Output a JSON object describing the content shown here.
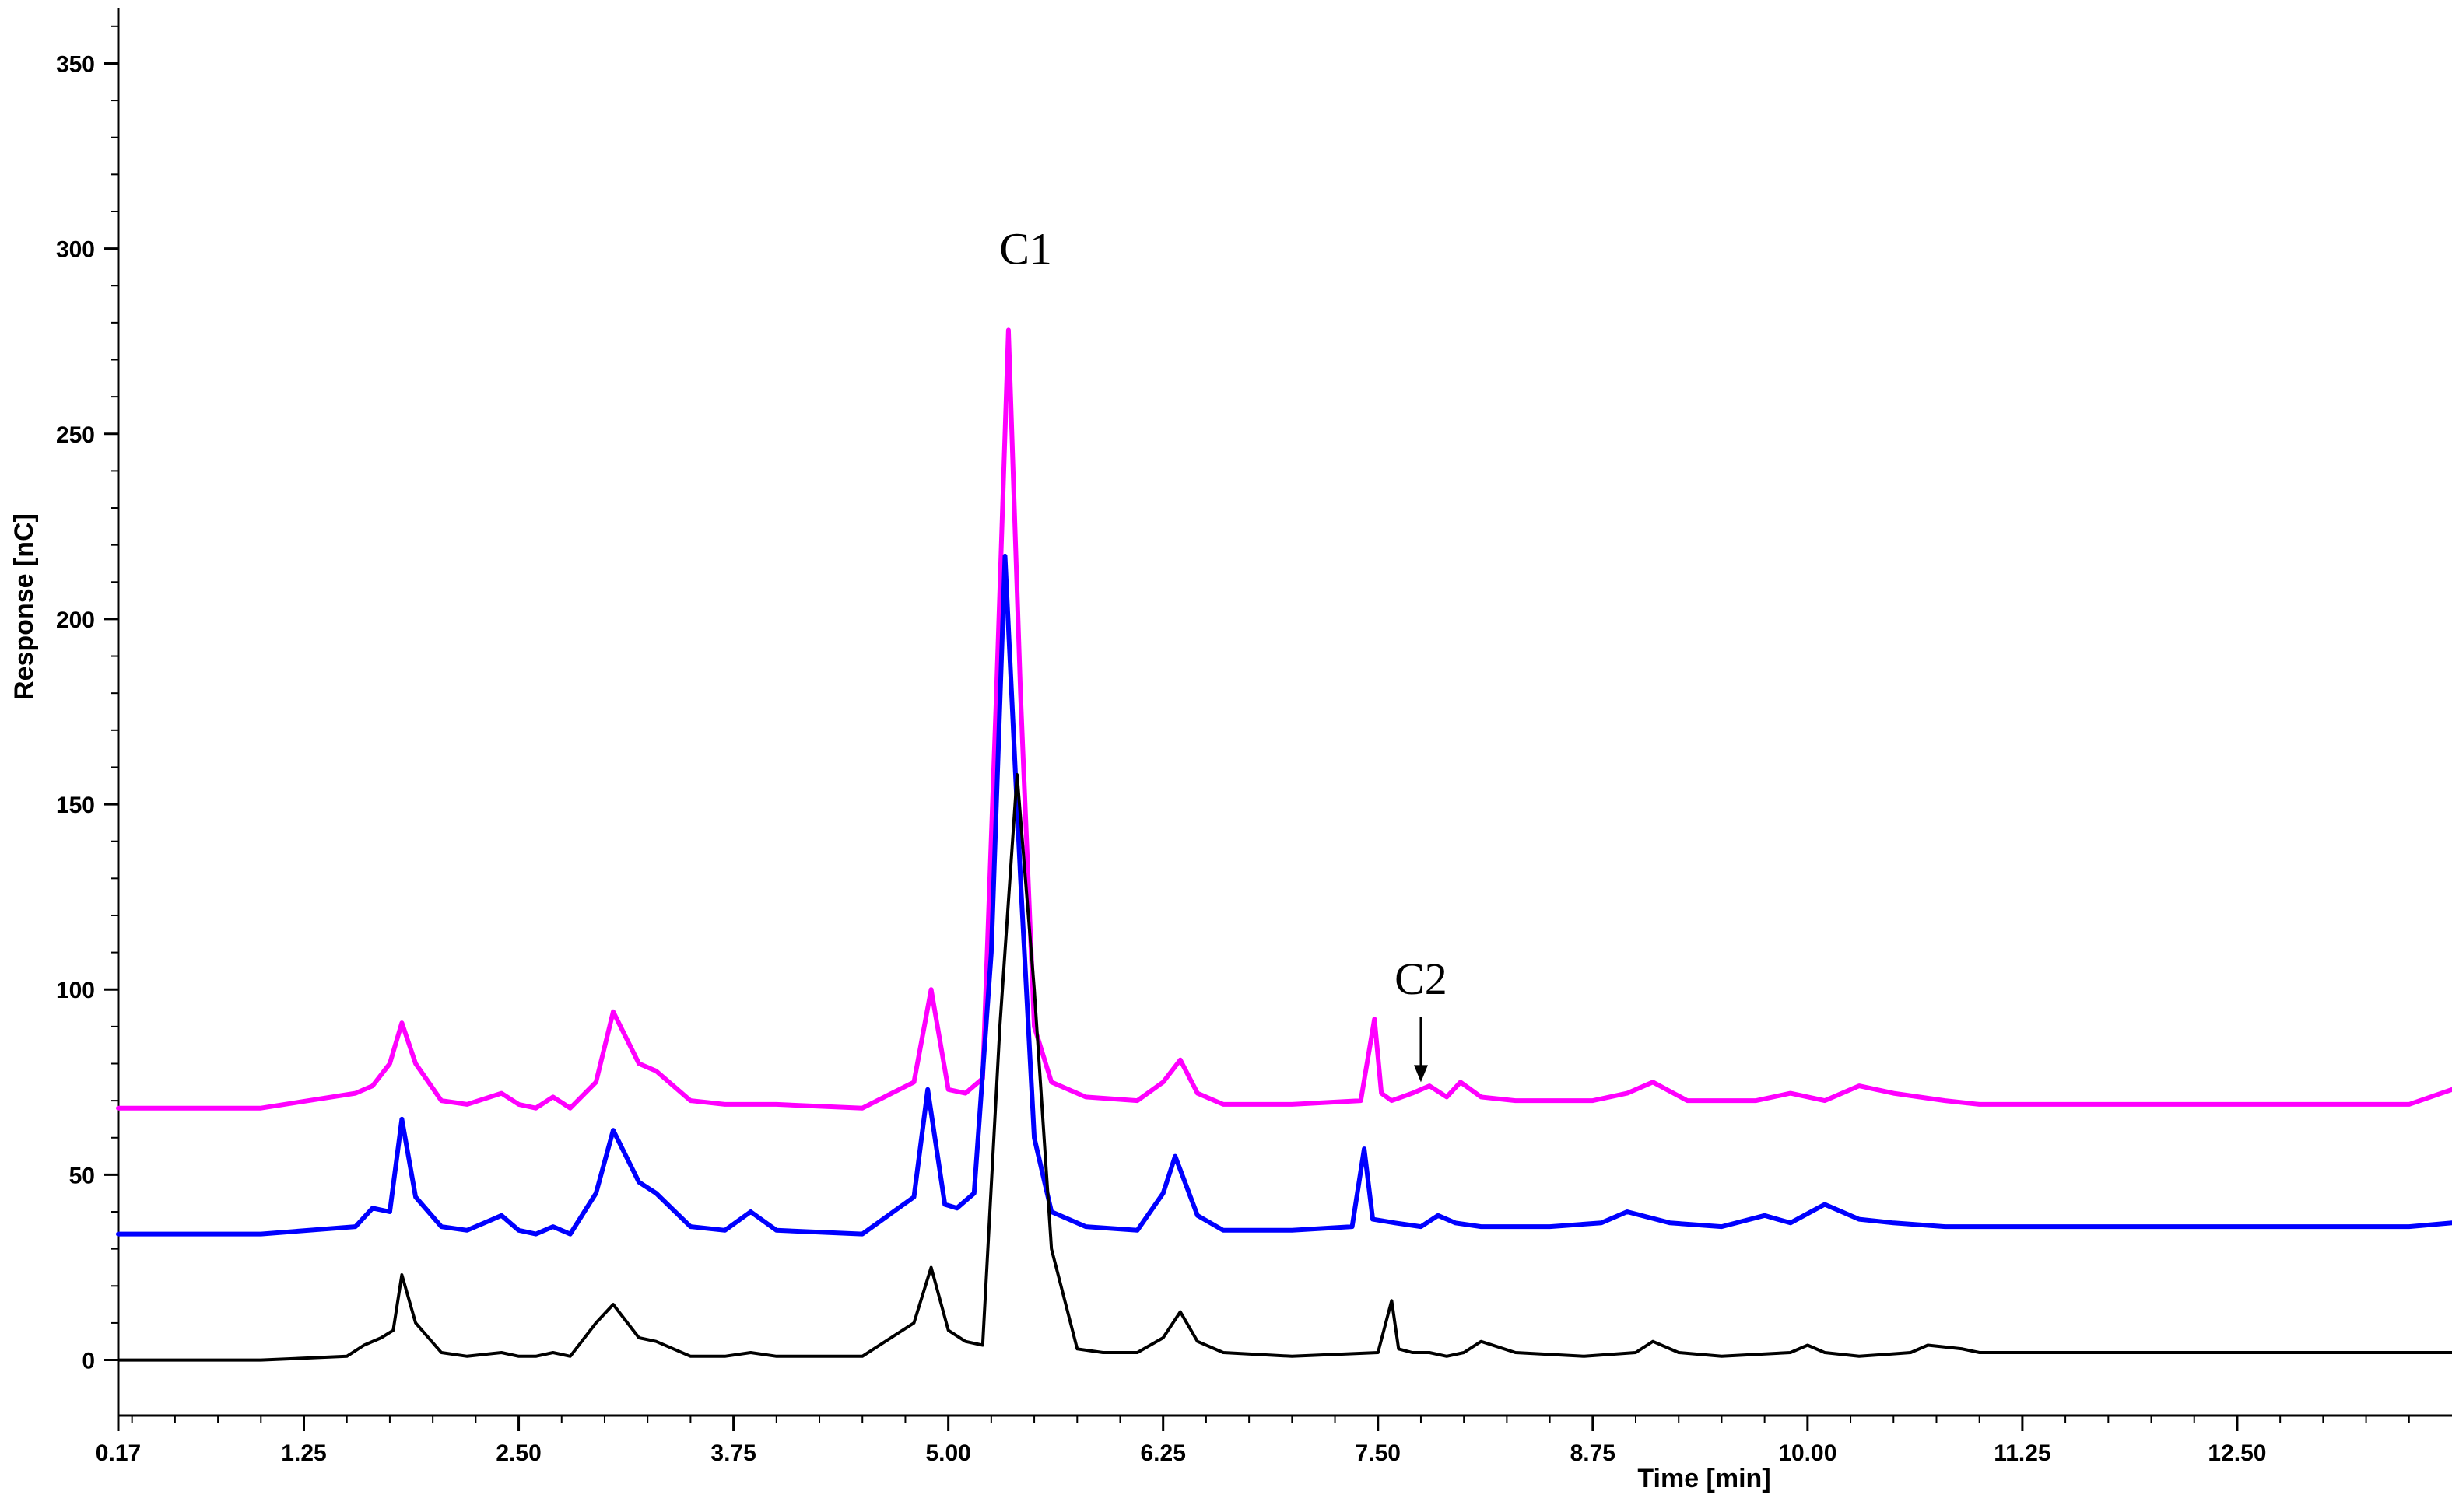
{
  "chart_data": {
    "type": "line",
    "title": "",
    "xlabel": "Time [min]",
    "ylabel": "Response [nC]",
    "xlim": [
      0.17,
      13.75
    ],
    "ylim": [
      -15,
      365
    ],
    "x_ticks": [
      0.17,
      1.25,
      2.5,
      3.75,
      5.0,
      6.25,
      7.5,
      8.75,
      10.0,
      11.25,
      12.5
    ],
    "x_tick_labels": [
      "0.17",
      "1.25",
      "2.50",
      "3.75",
      "5.00",
      "6.25",
      "7.50",
      "8.75",
      "10.00",
      "11.25",
      "12.50"
    ],
    "y_ticks": [
      0,
      50,
      100,
      150,
      200,
      250,
      300,
      350
    ],
    "y_tick_labels": [
      "0",
      "50",
      "100",
      "150",
      "200",
      "250",
      "300",
      "350"
    ],
    "grid": false,
    "legend": "none",
    "series": [
      {
        "color": "#ff00ff",
        "x": [
          0.17,
          1.0,
          1.55,
          1.65,
          1.75,
          1.82,
          1.9,
          2.05,
          2.2,
          2.4,
          2.5,
          2.6,
          2.7,
          2.8,
          2.95,
          3.05,
          3.2,
          3.3,
          3.5,
          3.7,
          3.85,
          4.0,
          4.5,
          4.8,
          4.9,
          5.0,
          5.1,
          5.2,
          5.28,
          5.35,
          5.42,
          5.5,
          5.6,
          5.8,
          6.1,
          6.25,
          6.35,
          6.45,
          6.6,
          7.0,
          7.4,
          7.48,
          7.52,
          7.58,
          7.7,
          7.8,
          7.9,
          7.98,
          8.1,
          8.3,
          8.75,
          8.95,
          9.1,
          9.3,
          9.7,
          9.9,
          10.1,
          10.3,
          10.5,
          10.8,
          11.0,
          12.0,
          13.0,
          13.5,
          13.75
        ],
        "y": [
          68,
          68,
          72,
          74,
          80,
          91,
          80,
          70,
          69,
          72,
          69,
          68,
          71,
          68,
          75,
          94,
          80,
          78,
          70,
          69,
          69,
          69,
          68,
          75,
          100,
          73,
          72,
          76,
          180,
          278,
          180,
          90,
          75,
          71,
          70,
          75,
          81,
          72,
          69,
          69,
          70,
          92,
          72,
          70,
          72,
          74,
          71,
          75,
          71,
          70,
          70,
          72,
          75,
          70,
          70,
          72,
          70,
          74,
          72,
          70,
          69,
          69,
          69,
          69,
          73
        ]
      },
      {
        "color": "#0000ff",
        "x": [
          0.17,
          1.0,
          1.55,
          1.65,
          1.75,
          1.82,
          1.9,
          2.05,
          2.2,
          2.4,
          2.5,
          2.6,
          2.7,
          2.8,
          2.95,
          3.05,
          3.2,
          3.3,
          3.5,
          3.7,
          3.85,
          4.0,
          4.5,
          4.8,
          4.88,
          4.98,
          5.05,
          5.15,
          5.25,
          5.33,
          5.42,
          5.5,
          5.6,
          5.8,
          6.1,
          6.25,
          6.32,
          6.45,
          6.6,
          7.0,
          7.35,
          7.42,
          7.47,
          7.6,
          7.75,
          7.85,
          7.95,
          8.1,
          8.5,
          8.8,
          8.95,
          9.2,
          9.5,
          9.75,
          9.9,
          10.1,
          10.3,
          10.5,
          10.8,
          11.0,
          12.0,
          13.0,
          13.5,
          13.75
        ],
        "y": [
          34,
          34,
          36,
          41,
          40,
          65,
          44,
          36,
          35,
          39,
          35,
          34,
          36,
          34,
          45,
          62,
          48,
          45,
          36,
          35,
          40,
          35,
          34,
          44,
          73,
          42,
          41,
          45,
          110,
          217,
          130,
          60,
          40,
          36,
          35,
          45,
          55,
          39,
          35,
          35,
          36,
          57,
          38,
          37,
          36,
          39,
          37,
          36,
          36,
          37,
          40,
          37,
          36,
          39,
          37,
          42,
          38,
          37,
          36,
          36,
          36,
          36,
          36,
          37
        ]
      },
      {
        "color": "#000000",
        "x": [
          0.17,
          1.0,
          1.5,
          1.6,
          1.7,
          1.77,
          1.82,
          1.9,
          2.05,
          2.2,
          2.4,
          2.5,
          2.6,
          2.7,
          2.8,
          2.95,
          3.05,
          3.2,
          3.3,
          3.5,
          3.7,
          3.85,
          4.0,
          4.5,
          4.8,
          4.9,
          5.0,
          5.1,
          5.2,
          5.3,
          5.4,
          5.5,
          5.6,
          5.75,
          5.9,
          6.1,
          6.25,
          6.35,
          6.45,
          6.6,
          7.0,
          7.5,
          7.58,
          7.62,
          7.7,
          7.8,
          7.9,
          8.0,
          8.1,
          8.3,
          8.7,
          9.0,
          9.1,
          9.25,
          9.5,
          9.9,
          10.0,
          10.1,
          10.3,
          10.6,
          10.7,
          10.9,
          11.0,
          12.0,
          13.0,
          13.5,
          13.75
        ],
        "y": [
          0,
          0,
          1,
          4,
          6,
          8,
          23,
          10,
          2,
          1,
          2,
          1,
          1,
          2,
          1,
          10,
          15,
          6,
          5,
          1,
          1,
          2,
          1,
          1,
          10,
          25,
          8,
          5,
          4,
          90,
          158,
          100,
          30,
          3,
          2,
          2,
          6,
          13,
          5,
          2,
          1,
          2,
          16,
          3,
          2,
          2,
          1,
          2,
          5,
          2,
          1,
          2,
          5,
          2,
          1,
          2,
          4,
          2,
          1,
          2,
          4,
          3,
          2,
          2,
          2,
          2,
          2
        ]
      }
    ],
    "annotations": [
      {
        "text": "C1",
        "x": 5.45,
        "y": 300
      },
      {
        "text": "C2",
        "x": 7.75,
        "y": 103,
        "arrow_to": {
          "x": 7.75,
          "y": 75
        }
      }
    ]
  }
}
